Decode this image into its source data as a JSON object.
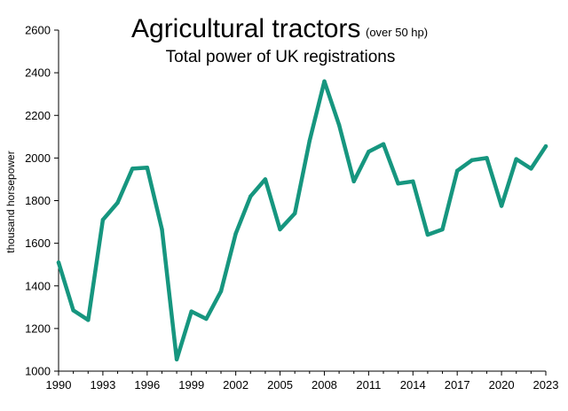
{
  "chart_data": {
    "type": "line",
    "title": "Agricultural tractors",
    "title_note": "(over 50 hp)",
    "subtitle": "Total power of UK registrations",
    "xlabel": "",
    "ylabel": "thousand horsepower",
    "ylim": [
      1000,
      2600
    ],
    "yticks": [
      1000,
      1200,
      1400,
      1600,
      1800,
      2000,
      2200,
      2400,
      2600
    ],
    "xlim": [
      1990,
      2023
    ],
    "xticks": [
      1990,
      1993,
      1996,
      1999,
      2002,
      2005,
      2008,
      2011,
      2014,
      2017,
      2020,
      2023
    ],
    "grid": false,
    "line_color": "#16967f",
    "series": [
      {
        "x": [
          1990,
          1991,
          1992,
          1993,
          1994,
          1995,
          1996,
          1997,
          1998,
          1999,
          2000,
          2001,
          2002,
          2003,
          2004,
          2005,
          2006,
          2007,
          2008,
          2009,
          2010,
          2011,
          2012,
          2013,
          2014,
          2015,
          2016,
          2017,
          2018,
          2019,
          2020,
          2021,
          2022,
          2023
        ],
        "values": [
          1510,
          1285,
          1240,
          1710,
          1790,
          1950,
          1955,
          1665,
          1055,
          1280,
          1245,
          1375,
          1645,
          1820,
          1900,
          1665,
          1740,
          2080,
          2360,
          2155,
          1890,
          2030,
          2065,
          1880,
          1890,
          1640,
          1665,
          1940,
          1990,
          2000,
          1775,
          1995,
          1950,
          2055
        ]
      }
    ]
  }
}
